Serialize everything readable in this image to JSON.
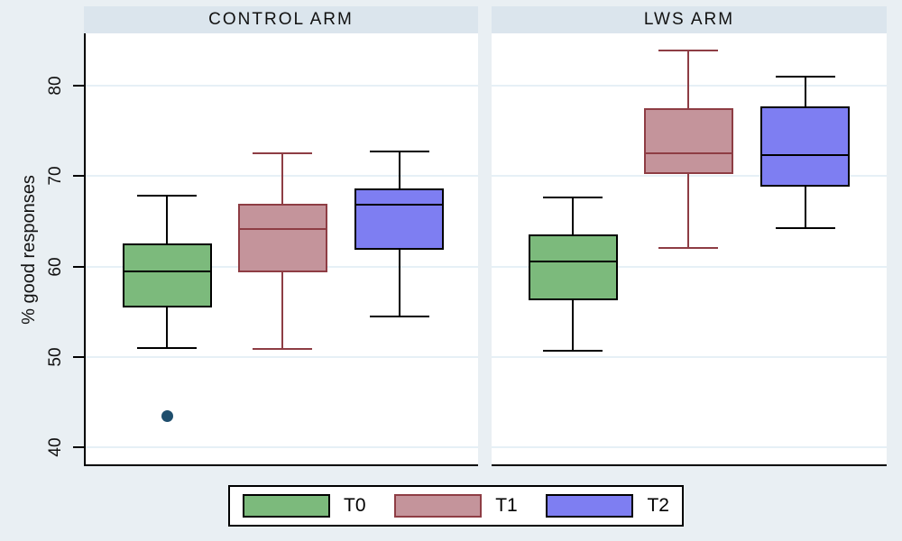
{
  "figure": {
    "kind": "grouped-boxplot",
    "background_color": "#e9eff3",
    "panel_band_color": "#dbe5ed",
    "plot_background_color": "#ffffff",
    "gridline_color": "#e6f0f6",
    "axis_color": "#000000"
  },
  "chart_data": {
    "type": "boxplot",
    "title": "",
    "ylabel": "% good responses",
    "ylim": [
      37.9,
      85.8
    ],
    "yticks": [
      40,
      50,
      60,
      70,
      80
    ],
    "grid": true,
    "legend_position": "bottom",
    "groups": [
      "T0",
      "T1",
      "T2"
    ],
    "panels": [
      {
        "title": "CONTROL ARM",
        "boxes": [
          {
            "group": "T0",
            "whisker_low": 51.0,
            "q1": 55.5,
            "median": 59.5,
            "q3": 62.6,
            "whisker_high": 67.8,
            "outliers": [
              43.5
            ]
          },
          {
            "group": "T1",
            "whisker_low": 50.9,
            "q1": 59.4,
            "median": 64.2,
            "q3": 66.9,
            "whisker_high": 72.5,
            "outliers": []
          },
          {
            "group": "T2",
            "whisker_low": 54.5,
            "q1": 61.9,
            "median": 66.8,
            "q3": 68.6,
            "whisker_high": 72.7,
            "outliers": []
          }
        ]
      },
      {
        "title": "LWS ARM",
        "boxes": [
          {
            "group": "T0",
            "whisker_low": 50.7,
            "q1": 56.3,
            "median": 60.6,
            "q3": 63.6,
            "whisker_high": 67.6,
            "outliers": []
          },
          {
            "group": "T1",
            "whisker_low": 62.1,
            "q1": 70.2,
            "median": 72.5,
            "q3": 77.5,
            "whisker_high": 83.9,
            "outliers": []
          },
          {
            "group": "T2",
            "whisker_low": 64.3,
            "q1": 68.8,
            "median": 72.3,
            "q3": 77.7,
            "whisker_high": 81.0,
            "outliers": []
          }
        ]
      }
    ],
    "series_styles": [
      {
        "name": "T0",
        "fill": "#7cba7c",
        "stroke": "#000000"
      },
      {
        "name": "T1",
        "fill": "#c4949b",
        "stroke": "#8e3d44"
      },
      {
        "name": "T2",
        "fill": "#7e7ef2",
        "stroke": "#000000"
      }
    ],
    "outlier_color": "#1f4e6d"
  },
  "legend": {
    "items": [
      {
        "label": "T0"
      },
      {
        "label": "T1"
      },
      {
        "label": "T2"
      }
    ]
  }
}
